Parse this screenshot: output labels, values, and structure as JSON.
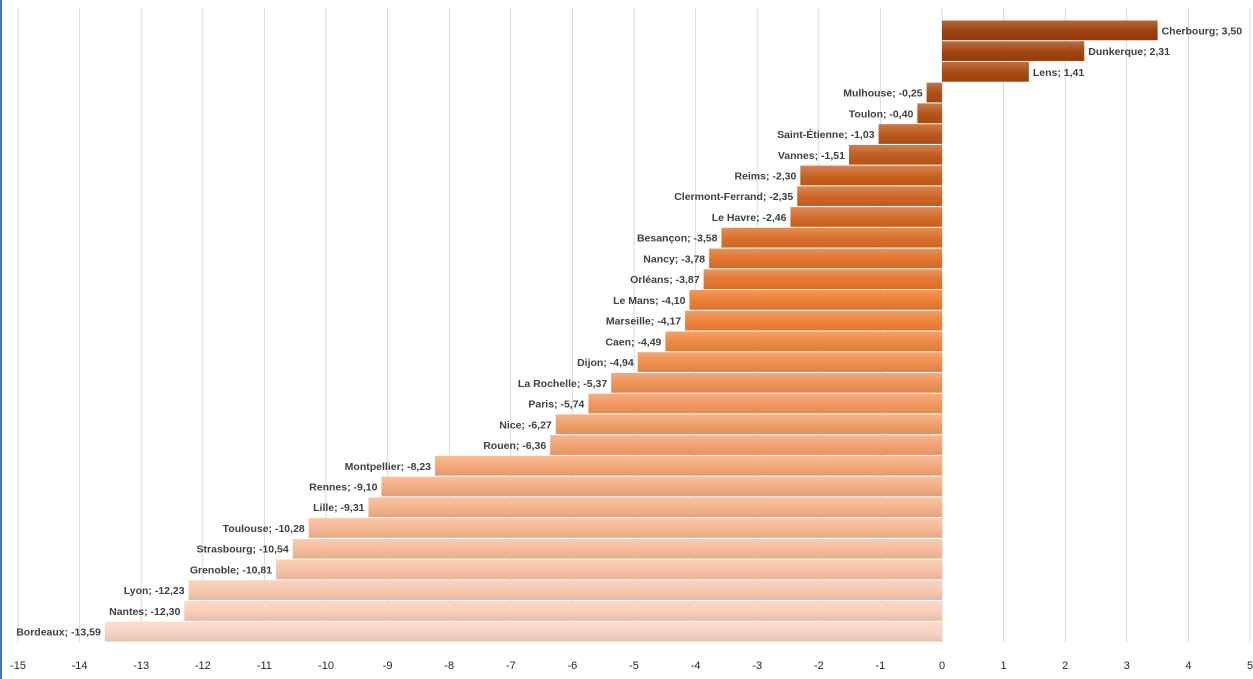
{
  "chart_data": {
    "type": "bar",
    "orientation": "horizontal",
    "title": "",
    "xlabel": "",
    "ylabel": "",
    "xlim": [
      -15,
      5
    ],
    "x_ticks": [
      "-15",
      "-14",
      "-13",
      "-12",
      "-11",
      "-10",
      "-9",
      "-8",
      "-7",
      "-6",
      "-5",
      "-4",
      "-3",
      "-2",
      "-1",
      "0",
      "1",
      "2",
      "3",
      "4",
      "5"
    ],
    "grid": true,
    "legend": "none",
    "colors": {
      "dark": "#9c400c",
      "mid": "#ed7d31",
      "light": "#f9d3c1"
    },
    "categories": [
      "Cherbourg",
      "Dunkerque",
      "Lens",
      "Mulhouse",
      "Toulon",
      "Saint-Étienne",
      "Vannes",
      "Reims",
      "Clermont-Ferrand",
      "Le Havre",
      "Besançon",
      "Nancy",
      "Orléans",
      "Le Mans",
      "Marseille",
      "Caen",
      "Dijon",
      "La Rochelle",
      "Paris",
      "Nice",
      "Rouen",
      "Montpellier",
      "Rennes",
      "Lille",
      "Toulouse",
      "Strasbourg",
      "Grenoble",
      "Lyon",
      "Nantes",
      "Bordeaux"
    ],
    "values": [
      3.5,
      2.31,
      1.41,
      -0.25,
      -0.4,
      -1.03,
      -1.51,
      -2.3,
      -2.35,
      -2.46,
      -3.58,
      -3.78,
      -3.87,
      -4.1,
      -4.17,
      -4.49,
      -4.94,
      -5.37,
      -5.74,
      -6.27,
      -6.36,
      -8.23,
      -9.1,
      -9.31,
      -10.28,
      -10.54,
      -10.81,
      -12.23,
      -12.3,
      -13.59
    ],
    "labels": [
      "Cherbourg; 3,50",
      "Dunkerque; 2,31",
      "Lens; 1,41",
      "Mulhouse; -0,25",
      "Toulon; -0,40",
      "Saint-Étienne; -1,03",
      "Vannes; -1,51",
      "Reims; -2,30",
      "Clermont-Ferrand; -2,35",
      "Le Havre; -2,46",
      "Besançon; -3,58",
      "Nancy; -3,78",
      "Orléans; -3,87",
      "Le Mans; -4,10",
      "Marseille; -4,17",
      "Caen; -4,49",
      "Dijon; -4,94",
      "La Rochelle; -5,37",
      "Paris; -5,74",
      "Nice; -6,27",
      "Rouen; -6,36",
      "Montpellier; -8,23",
      "Rennes; -9,10",
      "Lille; -9,31",
      "Toulouse; -10,28",
      "Strasbourg; -10,54",
      "Grenoble; -10,81",
      "Lyon; -12,23",
      "Nantes; -12,30",
      "Bordeaux; -13,59"
    ]
  }
}
